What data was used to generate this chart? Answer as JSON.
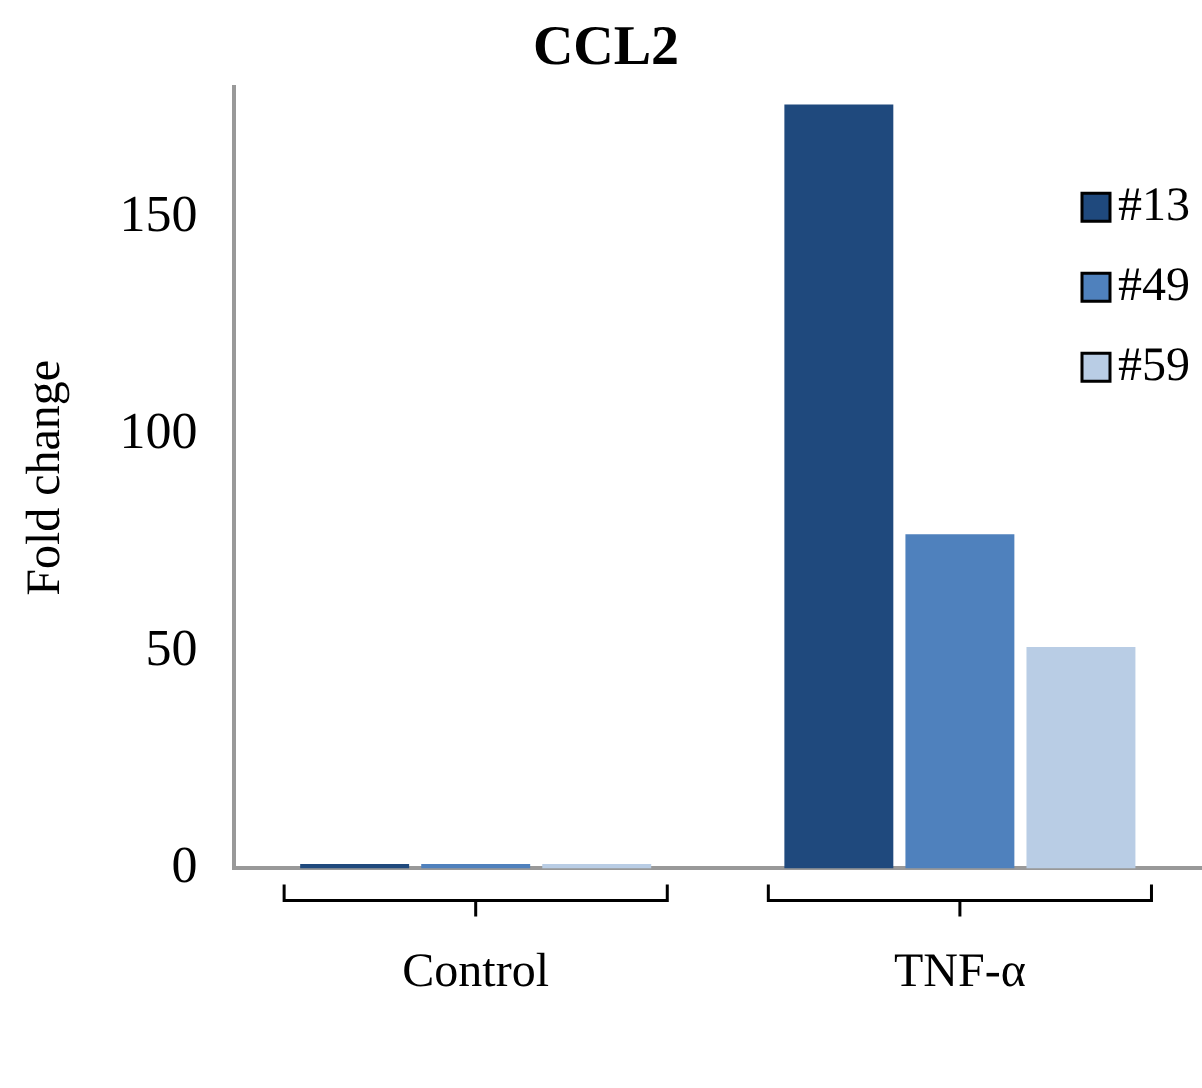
{
  "chart_data": {
    "type": "bar",
    "title": "CCL2",
    "ylabel": "Fold change",
    "categories": [
      "Control",
      "TNF-α"
    ],
    "series": [
      {
        "name": "#13",
        "color": "#1f497d",
        "values": [
          1,
          176
        ]
      },
      {
        "name": "#49",
        "color": "#4f81bd",
        "values": [
          1,
          77
        ]
      },
      {
        "name": "#59",
        "color": "#b9cde5",
        "values": [
          1,
          51
        ]
      }
    ],
    "ylim": [
      0,
      180
    ],
    "yticks": [
      0,
      50,
      100,
      150
    ],
    "grid": false,
    "legend": "top right"
  }
}
